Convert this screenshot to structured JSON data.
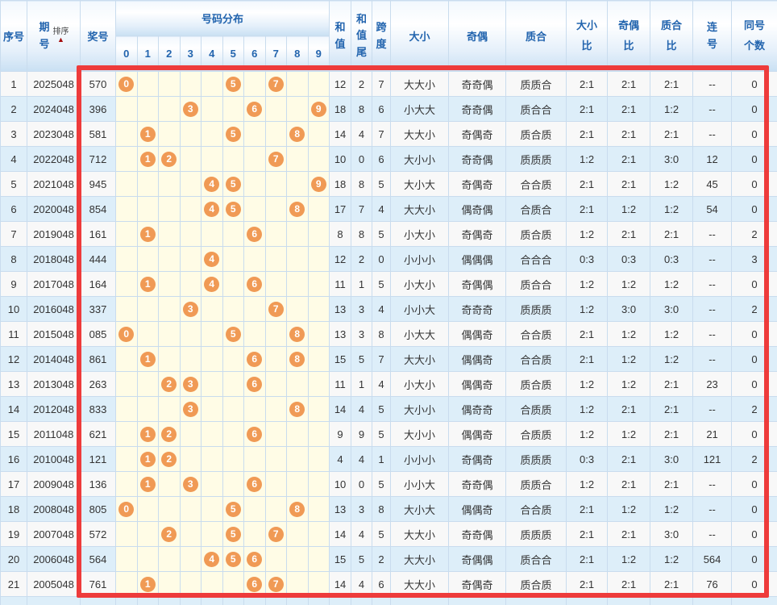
{
  "header": {
    "serial": "序号",
    "period": "期号",
    "sort_label": "排序",
    "sort_arrow": "▲",
    "prize_number": "奖号",
    "distribution": "号码分布",
    "digits": [
      "0",
      "1",
      "2",
      "3",
      "4",
      "5",
      "6",
      "7",
      "8",
      "9"
    ],
    "sum": "和值",
    "sum_tail": "和值尾",
    "span": "跨度",
    "size": "大小",
    "parity": "奇偶",
    "prime": "质合",
    "size_ratio": "大小比",
    "parity_ratio": "奇偶比",
    "prime_ratio": "质合比",
    "consecutive": "连号",
    "same_count": "同号个数"
  },
  "colors": {
    "frame_red": "#ee3b3b",
    "ball_orange": "#f09a55",
    "header_blue": "#2264ae",
    "row_alt_blue": "#ddeef9",
    "distribution_yellow": "#fffce6",
    "sort_arrow_red": "#a50d0d"
  },
  "rows": [
    {
      "no": "1",
      "period": "2025048",
      "num": "570",
      "balls": [
        0,
        5,
        7
      ],
      "sum": "12",
      "tail": "2",
      "span": "7",
      "size": "大大小",
      "parity": "奇奇偶",
      "prime": "质质合",
      "size_ratio": "2:1",
      "parity_ratio": "2:1",
      "prime_ratio": "2:1",
      "consec": "--",
      "same": "0"
    },
    {
      "no": "2",
      "period": "2024048",
      "num": "396",
      "balls": [
        3,
        6,
        9
      ],
      "sum": "18",
      "tail": "8",
      "span": "6",
      "size": "小大大",
      "parity": "奇奇偶",
      "prime": "质合合",
      "size_ratio": "2:1",
      "parity_ratio": "2:1",
      "prime_ratio": "1:2",
      "consec": "--",
      "same": "0"
    },
    {
      "no": "3",
      "period": "2023048",
      "num": "581",
      "balls": [
        1,
        5,
        8
      ],
      "sum": "14",
      "tail": "4",
      "span": "7",
      "size": "大大小",
      "parity": "奇偶奇",
      "prime": "质合质",
      "size_ratio": "2:1",
      "parity_ratio": "2:1",
      "prime_ratio": "2:1",
      "consec": "--",
      "same": "0"
    },
    {
      "no": "4",
      "period": "2022048",
      "num": "712",
      "balls": [
        1,
        2,
        7
      ],
      "sum": "10",
      "tail": "0",
      "span": "6",
      "size": "大小小",
      "parity": "奇奇偶",
      "prime": "质质质",
      "size_ratio": "1:2",
      "parity_ratio": "2:1",
      "prime_ratio": "3:0",
      "consec": "12",
      "same": "0"
    },
    {
      "no": "5",
      "period": "2021048",
      "num": "945",
      "balls": [
        4,
        5,
        9
      ],
      "sum": "18",
      "tail": "8",
      "span": "5",
      "size": "大小大",
      "parity": "奇偶奇",
      "prime": "合合质",
      "size_ratio": "2:1",
      "parity_ratio": "2:1",
      "prime_ratio": "1:2",
      "consec": "45",
      "same": "0"
    },
    {
      "no": "6",
      "period": "2020048",
      "num": "854",
      "balls": [
        4,
        5,
        8
      ],
      "sum": "17",
      "tail": "7",
      "span": "4",
      "size": "大大小",
      "parity": "偶奇偶",
      "prime": "合质合",
      "size_ratio": "2:1",
      "parity_ratio": "1:2",
      "prime_ratio": "1:2",
      "consec": "54",
      "same": "0"
    },
    {
      "no": "7",
      "period": "2019048",
      "num": "161",
      "balls": [
        1,
        6
      ],
      "sum": "8",
      "tail": "8",
      "span": "5",
      "size": "小大小",
      "parity": "奇偶奇",
      "prime": "质合质",
      "size_ratio": "1:2",
      "parity_ratio": "2:1",
      "prime_ratio": "2:1",
      "consec": "--",
      "same": "2"
    },
    {
      "no": "8",
      "period": "2018048",
      "num": "444",
      "balls": [
        4
      ],
      "sum": "12",
      "tail": "2",
      "span": "0",
      "size": "小小小",
      "parity": "偶偶偶",
      "prime": "合合合",
      "size_ratio": "0:3",
      "parity_ratio": "0:3",
      "prime_ratio": "0:3",
      "consec": "--",
      "same": "3"
    },
    {
      "no": "9",
      "period": "2017048",
      "num": "164",
      "balls": [
        1,
        4,
        6
      ],
      "sum": "11",
      "tail": "1",
      "span": "5",
      "size": "小大小",
      "parity": "奇偶偶",
      "prime": "质合合",
      "size_ratio": "1:2",
      "parity_ratio": "1:2",
      "prime_ratio": "1:2",
      "consec": "--",
      "same": "0"
    },
    {
      "no": "10",
      "period": "2016048",
      "num": "337",
      "balls": [
        3,
        7
      ],
      "sum": "13",
      "tail": "3",
      "span": "4",
      "size": "小小大",
      "parity": "奇奇奇",
      "prime": "质质质",
      "size_ratio": "1:2",
      "parity_ratio": "3:0",
      "prime_ratio": "3:0",
      "consec": "--",
      "same": "2"
    },
    {
      "no": "11",
      "period": "2015048",
      "num": "085",
      "balls": [
        0,
        5,
        8
      ],
      "sum": "13",
      "tail": "3",
      "span": "8",
      "size": "小大大",
      "parity": "偶偶奇",
      "prime": "合合质",
      "size_ratio": "2:1",
      "parity_ratio": "1:2",
      "prime_ratio": "1:2",
      "consec": "--",
      "same": "0"
    },
    {
      "no": "12",
      "period": "2014048",
      "num": "861",
      "balls": [
        1,
        6,
        8
      ],
      "sum": "15",
      "tail": "5",
      "span": "7",
      "size": "大大小",
      "parity": "偶偶奇",
      "prime": "合合质",
      "size_ratio": "2:1",
      "parity_ratio": "1:2",
      "prime_ratio": "1:2",
      "consec": "--",
      "same": "0"
    },
    {
      "no": "13",
      "period": "2013048",
      "num": "263",
      "balls": [
        2,
        3,
        6
      ],
      "sum": "11",
      "tail": "1",
      "span": "4",
      "size": "小大小",
      "parity": "偶偶奇",
      "prime": "质合质",
      "size_ratio": "1:2",
      "parity_ratio": "1:2",
      "prime_ratio": "2:1",
      "consec": "23",
      "same": "0"
    },
    {
      "no": "14",
      "period": "2012048",
      "num": "833",
      "balls": [
        3,
        8
      ],
      "sum": "14",
      "tail": "4",
      "span": "5",
      "size": "大小小",
      "parity": "偶奇奇",
      "prime": "合质质",
      "size_ratio": "1:2",
      "parity_ratio": "2:1",
      "prime_ratio": "2:1",
      "consec": "--",
      "same": "2"
    },
    {
      "no": "15",
      "period": "2011048",
      "num": "621",
      "balls": [
        1,
        2,
        6
      ],
      "sum": "9",
      "tail": "9",
      "span": "5",
      "size": "大小小",
      "parity": "偶偶奇",
      "prime": "合质质",
      "size_ratio": "1:2",
      "parity_ratio": "1:2",
      "prime_ratio": "2:1",
      "consec": "21",
      "same": "0"
    },
    {
      "no": "16",
      "period": "2010048",
      "num": "121",
      "balls": [
        1,
        2
      ],
      "sum": "4",
      "tail": "4",
      "span": "1",
      "size": "小小小",
      "parity": "奇偶奇",
      "prime": "质质质",
      "size_ratio": "0:3",
      "parity_ratio": "2:1",
      "prime_ratio": "3:0",
      "consec": "121",
      "same": "2"
    },
    {
      "no": "17",
      "period": "2009048",
      "num": "136",
      "balls": [
        1,
        3,
        6
      ],
      "sum": "10",
      "tail": "0",
      "span": "5",
      "size": "小小大",
      "parity": "奇奇偶",
      "prime": "质质合",
      "size_ratio": "1:2",
      "parity_ratio": "2:1",
      "prime_ratio": "2:1",
      "consec": "--",
      "same": "0"
    },
    {
      "no": "18",
      "period": "2008048",
      "num": "805",
      "balls": [
        0,
        5,
        8
      ],
      "sum": "13",
      "tail": "3",
      "span": "8",
      "size": "大小大",
      "parity": "偶偶奇",
      "prime": "合合质",
      "size_ratio": "2:1",
      "parity_ratio": "1:2",
      "prime_ratio": "1:2",
      "consec": "--",
      "same": "0"
    },
    {
      "no": "19",
      "period": "2007048",
      "num": "572",
      "balls": [
        2,
        5,
        7
      ],
      "sum": "14",
      "tail": "4",
      "span": "5",
      "size": "大大小",
      "parity": "奇奇偶",
      "prime": "质质质",
      "size_ratio": "2:1",
      "parity_ratio": "2:1",
      "prime_ratio": "3:0",
      "consec": "--",
      "same": "0"
    },
    {
      "no": "20",
      "period": "2006048",
      "num": "564",
      "balls": [
        4,
        5,
        6
      ],
      "sum": "15",
      "tail": "5",
      "span": "2",
      "size": "大大小",
      "parity": "奇偶偶",
      "prime": "质合合",
      "size_ratio": "2:1",
      "parity_ratio": "1:2",
      "prime_ratio": "1:2",
      "consec": "564",
      "same": "0"
    },
    {
      "no": "21",
      "period": "2005048",
      "num": "761",
      "balls": [
        1,
        6,
        7
      ],
      "sum": "14",
      "tail": "4",
      "span": "6",
      "size": "大大小",
      "parity": "奇偶奇",
      "prime": "质合质",
      "size_ratio": "2:1",
      "parity_ratio": "2:1",
      "prime_ratio": "2:1",
      "consec": "76",
      "same": "0"
    }
  ]
}
